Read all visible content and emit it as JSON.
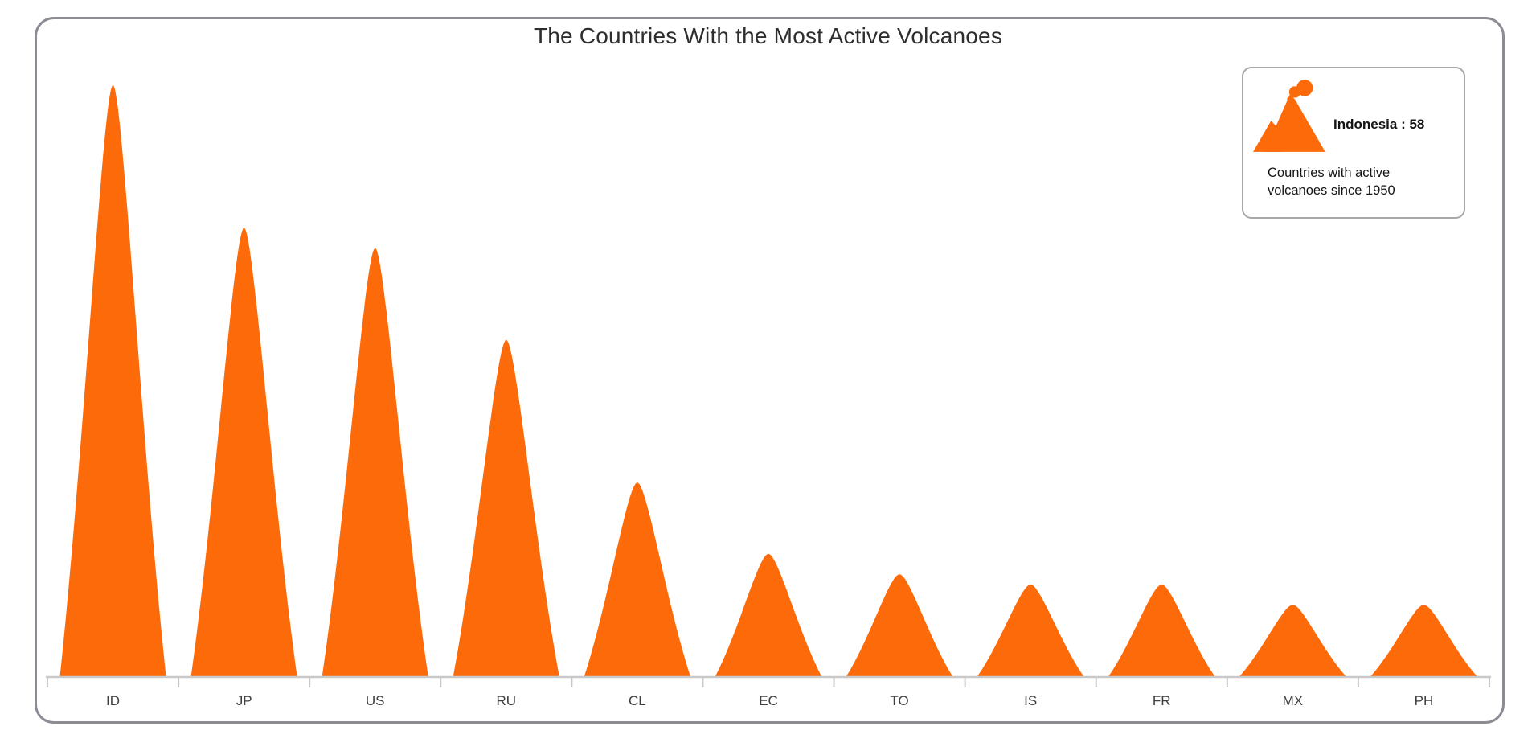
{
  "title": "The Countries With the Most Active Volcanoes",
  "tooltip": {
    "icon": "volcano-icon",
    "highlight": "Indonesia : 58",
    "note": "Countries with active volcanoes since 1950"
  },
  "colors": {
    "volcano": "#fc6a0a",
    "axis": "#c9c9c9",
    "frame_border": "#8e8b95",
    "tooltip_border": "#a8a8a8",
    "title_text": "#2e2e2e",
    "label_text": "#3f3f3f"
  },
  "chart_data": {
    "type": "bar",
    "subtype": "pictorial-volcano-peaks",
    "title": "The Countries With the Most Active Volcanoes",
    "categories": [
      "ID",
      "JP",
      "US",
      "RU",
      "CL",
      "EC",
      "TO",
      "IS",
      "FR",
      "MX",
      "PH"
    ],
    "values": [
      58,
      44,
      42,
      33,
      19,
      12,
      10,
      9,
      9,
      7,
      7
    ],
    "series_name": "Countries with active volcanoes since 1950",
    "highlighted_point": {
      "category": "ID",
      "country": "Indonesia",
      "value": 58
    },
    "xlabel": "",
    "ylabel": "",
    "ylim": [
      0,
      58
    ],
    "grid": false,
    "legend_position": "top-right"
  }
}
